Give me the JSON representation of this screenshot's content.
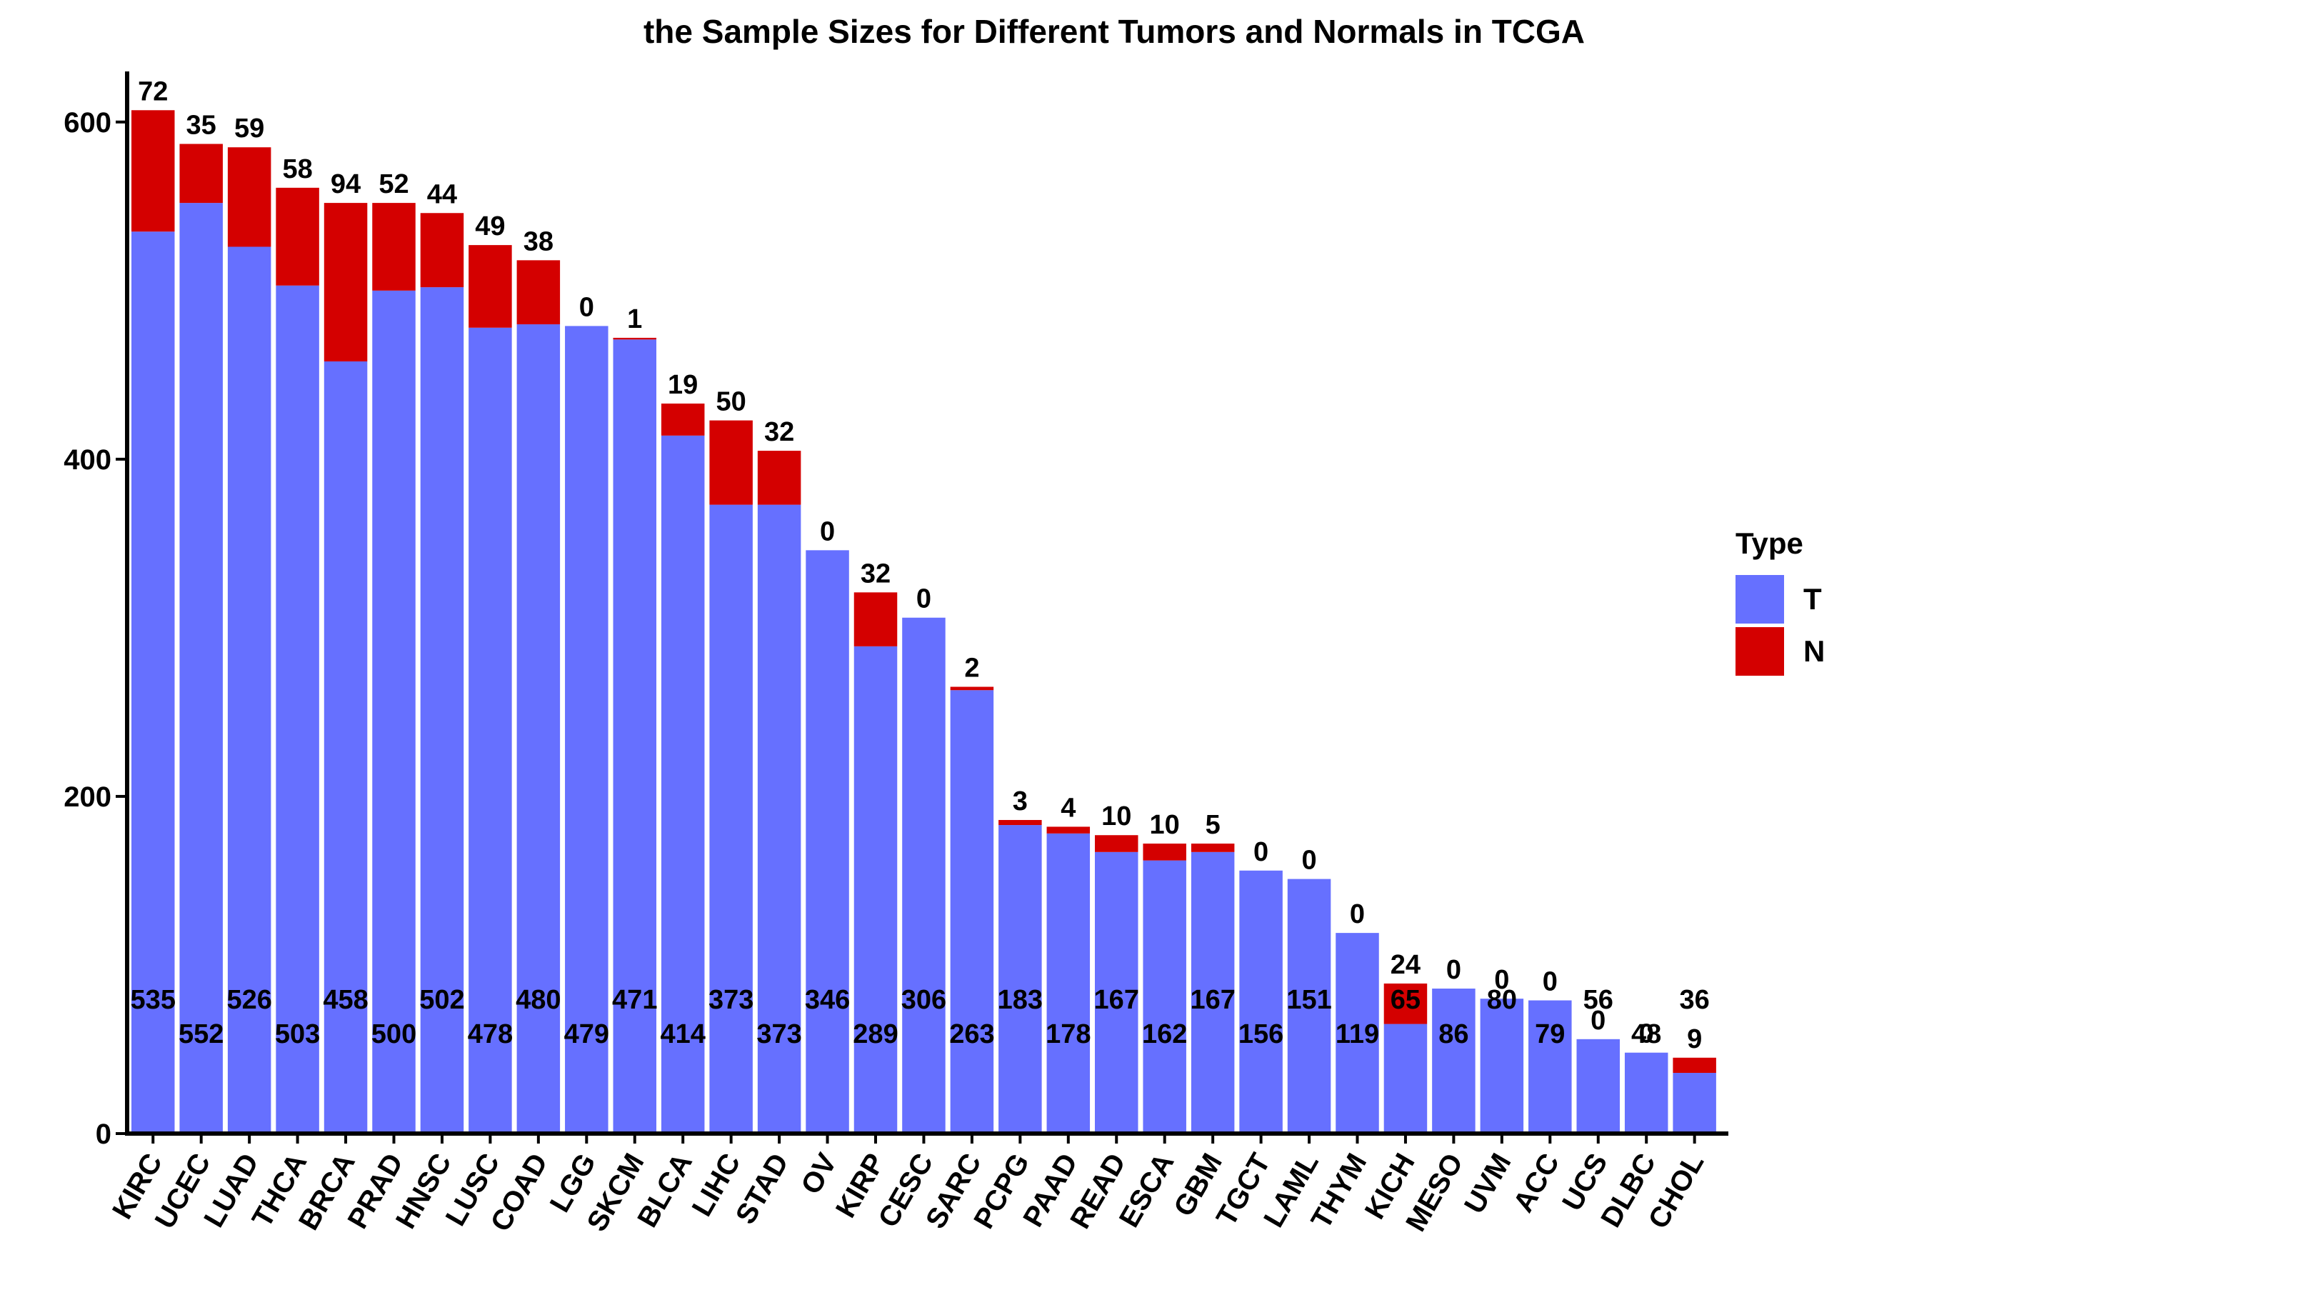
{
  "chart_data": {
    "type": "bar",
    "stacked": true,
    "title": "the Sample Sizes for Different Tumors and Normals in TCGA",
    "xlabel": "",
    "ylabel": "",
    "ylim": [
      0,
      630
    ],
    "yticks": [
      0,
      200,
      400,
      600
    ],
    "grid": false,
    "legend": {
      "title": "Type",
      "position": "right",
      "entries": [
        {
          "label": "T",
          "color": "#6670FF"
        },
        {
          "label": "N",
          "color": "#D40000"
        }
      ]
    },
    "categories": [
      "KIRC",
      "UCEC",
      "LUAD",
      "THCA",
      "BRCA",
      "PRAD",
      "HNSC",
      "LUSC",
      "COAD",
      "LGG",
      "SKCM",
      "BLCA",
      "LIHC",
      "STAD",
      "OV",
      "KIRP",
      "CESC",
      "SARC",
      "PCPG",
      "PAAD",
      "READ",
      "ESCA",
      "GBM",
      "TGCT",
      "LAML",
      "THYM",
      "KICH",
      "MESO",
      "UVM",
      "ACC",
      "UCS",
      "DLBC",
      "CHOL"
    ],
    "series": [
      {
        "name": "T",
        "color": "#6670FF",
        "values": [
          535,
          552,
          526,
          503,
          458,
          500,
          502,
          478,
          480,
          479,
          471,
          414,
          373,
          373,
          346,
          289,
          306,
          263,
          183,
          178,
          167,
          162,
          167,
          156,
          151,
          119,
          65,
          86,
          80,
          79,
          56,
          48,
          36
        ]
      },
      {
        "name": "N",
        "color": "#D40000",
        "values": [
          72,
          35,
          59,
          58,
          94,
          52,
          44,
          49,
          38,
          0,
          1,
          19,
          50,
          32,
          0,
          32,
          0,
          2,
          3,
          4,
          10,
          10,
          5,
          0,
          0,
          0,
          24,
          0,
          0,
          0,
          0,
          0,
          9
        ]
      }
    ]
  }
}
